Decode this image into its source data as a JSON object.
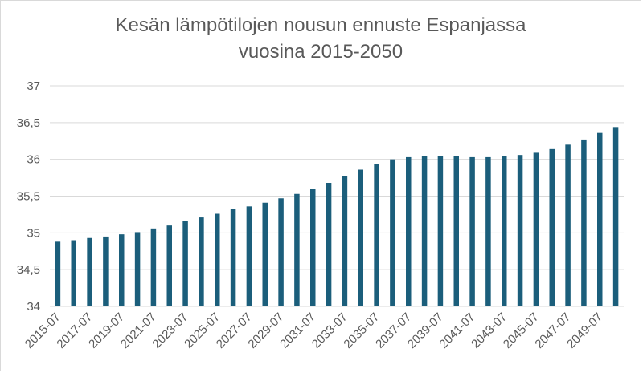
{
  "chart_data": {
    "type": "bar",
    "title_line1": "Kesän lämpötilojen nousun ennuste Espanjassa",
    "title_line2": "vuosina 2015-2050",
    "xlabel": "",
    "ylabel": "",
    "ylim": [
      34,
      37
    ],
    "yticks": [
      "34",
      "34,5",
      "35",
      "35,5",
      "36",
      "36,5",
      "37"
    ],
    "ytick_values": [
      34,
      34.5,
      35,
      35.5,
      36,
      36.5,
      37
    ],
    "grid": true,
    "legend": "none",
    "bar_color": "#1b5e7b",
    "categories": [
      "2015-07",
      "2016-07",
      "2017-07",
      "2018-07",
      "2019-07",
      "2020-07",
      "2021-07",
      "2022-07",
      "2023-07",
      "2024-07",
      "2025-07",
      "2026-07",
      "2027-07",
      "2028-07",
      "2029-07",
      "2030-07",
      "2031-07",
      "2032-07",
      "2033-07",
      "2034-07",
      "2035-07",
      "2036-07",
      "2037-07",
      "2038-07",
      "2039-07",
      "2040-07",
      "2041-07",
      "2042-07",
      "2043-07",
      "2044-07",
      "2045-07",
      "2046-07",
      "2047-07",
      "2048-07",
      "2049-07",
      "2050-07"
    ],
    "category_label_shown": [
      true,
      false,
      true,
      false,
      true,
      false,
      true,
      false,
      true,
      false,
      true,
      false,
      true,
      false,
      true,
      false,
      true,
      false,
      true,
      false,
      true,
      false,
      true,
      false,
      true,
      false,
      true,
      false,
      true,
      false,
      true,
      false,
      true,
      false,
      true,
      false
    ],
    "values": [
      34.88,
      34.9,
      34.93,
      34.95,
      34.98,
      35.01,
      35.06,
      35.1,
      35.16,
      35.21,
      35.26,
      35.32,
      35.36,
      35.41,
      35.47,
      35.53,
      35.6,
      35.68,
      35.77,
      35.86,
      35.94,
      36.0,
      36.03,
      36.05,
      36.05,
      36.04,
      36.03,
      36.03,
      36.04,
      36.06,
      36.09,
      36.14,
      36.2,
      36.27,
      36.36,
      36.44
    ]
  }
}
